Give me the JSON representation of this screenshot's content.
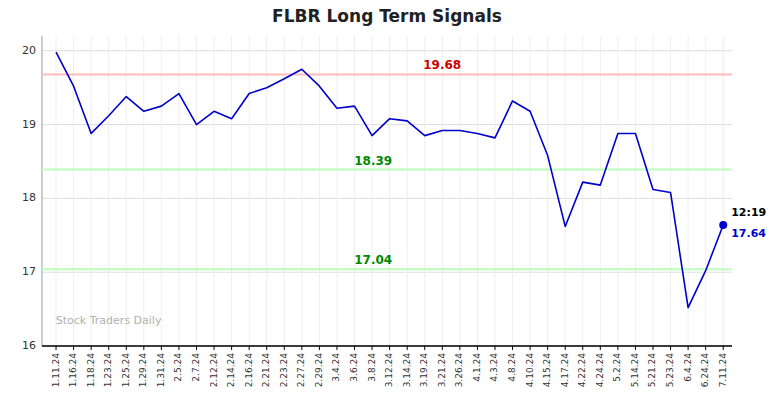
{
  "chart_data": {
    "type": "line",
    "title": "FLBR Long Term Signals",
    "categories": [
      "1.11.24",
      "1.16.24",
      "1.18.24",
      "1.23.24",
      "1.25.24",
      "1.29.24",
      "1.31.24",
      "2.5.24",
      "2.7.24",
      "2.12.24",
      "2.14.24",
      "2.16.24",
      "2.21.24",
      "2.23.24",
      "2.27.24",
      "2.29.24",
      "3.4.24",
      "3.6.24",
      "3.8.24",
      "3.12.24",
      "3.14.24",
      "3.19.24",
      "3.21.24",
      "3.26.24",
      "4.1.24",
      "4.3.24",
      "4.8.24",
      "4.10.24",
      "4.15.24",
      "4.17.24",
      "4.22.24",
      "4.24.24",
      "5.2.24",
      "5.14.24",
      "5.21.24",
      "5.23.24",
      "6.4.24",
      "6.24.24",
      "7.11.24"
    ],
    "values": [
      19.98,
      19.52,
      18.88,
      19.12,
      19.38,
      19.18,
      19.25,
      19.42,
      19.0,
      19.18,
      19.08,
      19.42,
      19.5,
      19.62,
      19.75,
      19.52,
      19.22,
      19.25,
      18.85,
      19.08,
      19.05,
      18.85,
      18.92,
      18.92,
      18.88,
      18.82,
      19.32,
      19.18,
      18.58,
      17.62,
      18.22,
      18.18,
      18.88,
      18.88,
      18.12,
      18.08,
      16.52,
      17.02,
      17.64
    ],
    "color": "#0000cc",
    "hlines": [
      {
        "value": 19.68,
        "color": "#ffbbbb",
        "label_color": "#cc0000"
      },
      {
        "value": 18.39,
        "color": "#bbffbb",
        "label_color": "#008800"
      },
      {
        "value": 17.04,
        "color": "#bbffbb",
        "label_color": "#008800"
      }
    ],
    "last_point_labels": [
      "12:19",
      "17.64"
    ],
    "watermark": "Stock Traders Daily",
    "ylim": [
      16.0,
      20.2
    ],
    "yticks": [
      16,
      17,
      18,
      19,
      20
    ],
    "grid": true
  }
}
